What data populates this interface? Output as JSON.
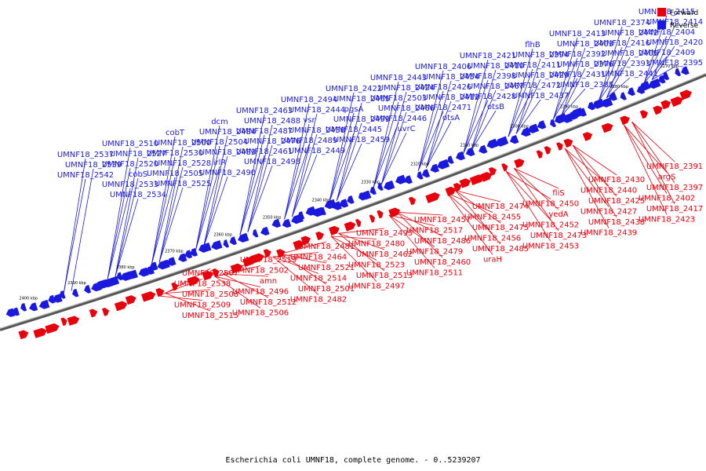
{
  "caption": "Escherichia coli UMNF18, complete genome. - 0..5239207",
  "colors": {
    "forward": "#e8000b",
    "reverse": "#1a1adf",
    "backbone": "#555555"
  },
  "legend": [
    {
      "label": "Forward",
      "color": "#e8000b"
    },
    {
      "label": "Reverse",
      "color": "#1a1adf"
    }
  ],
  "ticks": [
    "2270 kbp",
    "2280 kbp",
    "2290 kbp",
    "2300 kbp",
    "2310 kbp",
    "2320 kbp",
    "2330 kbp",
    "2340 kbp",
    "2350 kbp",
    "2360 kbp",
    "2370 kbp",
    "2380 kbp",
    "2390 kbp",
    "2400 kbp"
  ],
  "reverse_labels": [
    "UMNF18_2415",
    "UMNF18_2414",
    "UMNF18_2404",
    "UMNF18_2420",
    "UMNF18_2409",
    "UMNF18_2395",
    "UMNF18_2374",
    "UMNF18_2442",
    "UMNF18_2416",
    "UMNF18_2405",
    "UMNF18_2393",
    "UMNF18_2441",
    "UMNF18_2413",
    "UMNF18_2403",
    "UMNF18_2392",
    "UMNF18_2376",
    "UMNF18_2431",
    "UMNF18_2385",
    "flhB",
    "UMNF18_2394",
    "UMNF18_2411",
    "UMNF18_2429",
    "UMNF18_2472",
    "UMNF18_2437",
    "UMNF18_2421",
    "UMNF18_2410",
    "UMNF18_2398",
    "UMNF18_2467",
    "UMNF18_2428",
    "otsB",
    "UMNF18_2406",
    "UMNF18_2454",
    "UMNF18_2426",
    "UMNF18_2412",
    "UMNF18_2471",
    "otsA",
    "UMNF18_2443",
    "UMNF18_2424",
    "UMNF18_2503",
    "UMNF18_2466",
    "UMNF18_2446",
    "uvrC",
    "UMNF18_2422",
    "UMNF18_2465",
    "pgsA",
    "UMNF18_2499",
    "UMNF18_2445",
    "UMNF18_2459",
    "UMNF18_2494",
    "UMNF18_2444",
    "vsr",
    "UMNF18_2458",
    "UMNF18_2489",
    "UMNF18_2449",
    "UMNF18_2463",
    "UMNF18_2488",
    "UMNF18_2487",
    "UMNF18_2476",
    "UMNF18_2461",
    "UMNF18_2498",
    "dcm",
    "UMNF18_2484",
    "UMNF18_2504",
    "UMNF18_2483",
    "irlR",
    "UMNF18_2490",
    "cobT",
    "UMNF18_2500",
    "UMNF18_2530",
    "UMNF18_2528",
    "UMNF18_2505",
    "UMNF18_2525",
    "UMNF18_2510",
    "UMNF18_2527",
    "UMNF18_2520",
    "cobS",
    "UMNF18_2533",
    "UMNF18_2534",
    "UMNF18_2537",
    "UMNF18_2539",
    "UMNF18_2542"
  ],
  "forward_labels": [
    "UMNF18_2391",
    "argS",
    "UMNF18_2397",
    "UMNF18_2402",
    "UMNF18_2417",
    "UMNF18_2423",
    "UMNF18_2430",
    "UMNF18_2440",
    "UMNF18_2425",
    "UMNF18_2427",
    "UMNF18_2438",
    "UMNF18_2439",
    "fliS",
    "UMNF18_2450",
    "yedA",
    "UMNF18_2452",
    "UMNF18_2473",
    "UMNF18_2453",
    "UMNF18_2474",
    "UMNF18_2455",
    "UMNF18_2475",
    "UMNF18_2456",
    "UMNF18_2485",
    "uraH",
    "UMNF18_2457",
    "UMNF18_2517",
    "UMNF18_2486",
    "UMNF18_2479",
    "UMNF18_2460",
    "UMNF18_2511",
    "UMNF18_2495",
    "UMNF18_2480",
    "UMNF18_2462",
    "UMNF18_2523",
    "UMNF18_2513",
    "UMNF18_2497",
    "UMNF18_2481",
    "UMNF18_2464",
    "UMNF18_2521",
    "UMNF18_2514",
    "UMNF18_2501",
    "UMNF18_2482",
    "UMNF18_2519",
    "UMNF18_2502",
    "amn",
    "UMNF18_2496",
    "UMNF18_2512",
    "UMNF18_2506",
    "UMNF18_2507",
    "UMNF18_2538",
    "UMNF18_2508",
    "UMNF18_2509",
    "UMNF18_2515"
  ]
}
